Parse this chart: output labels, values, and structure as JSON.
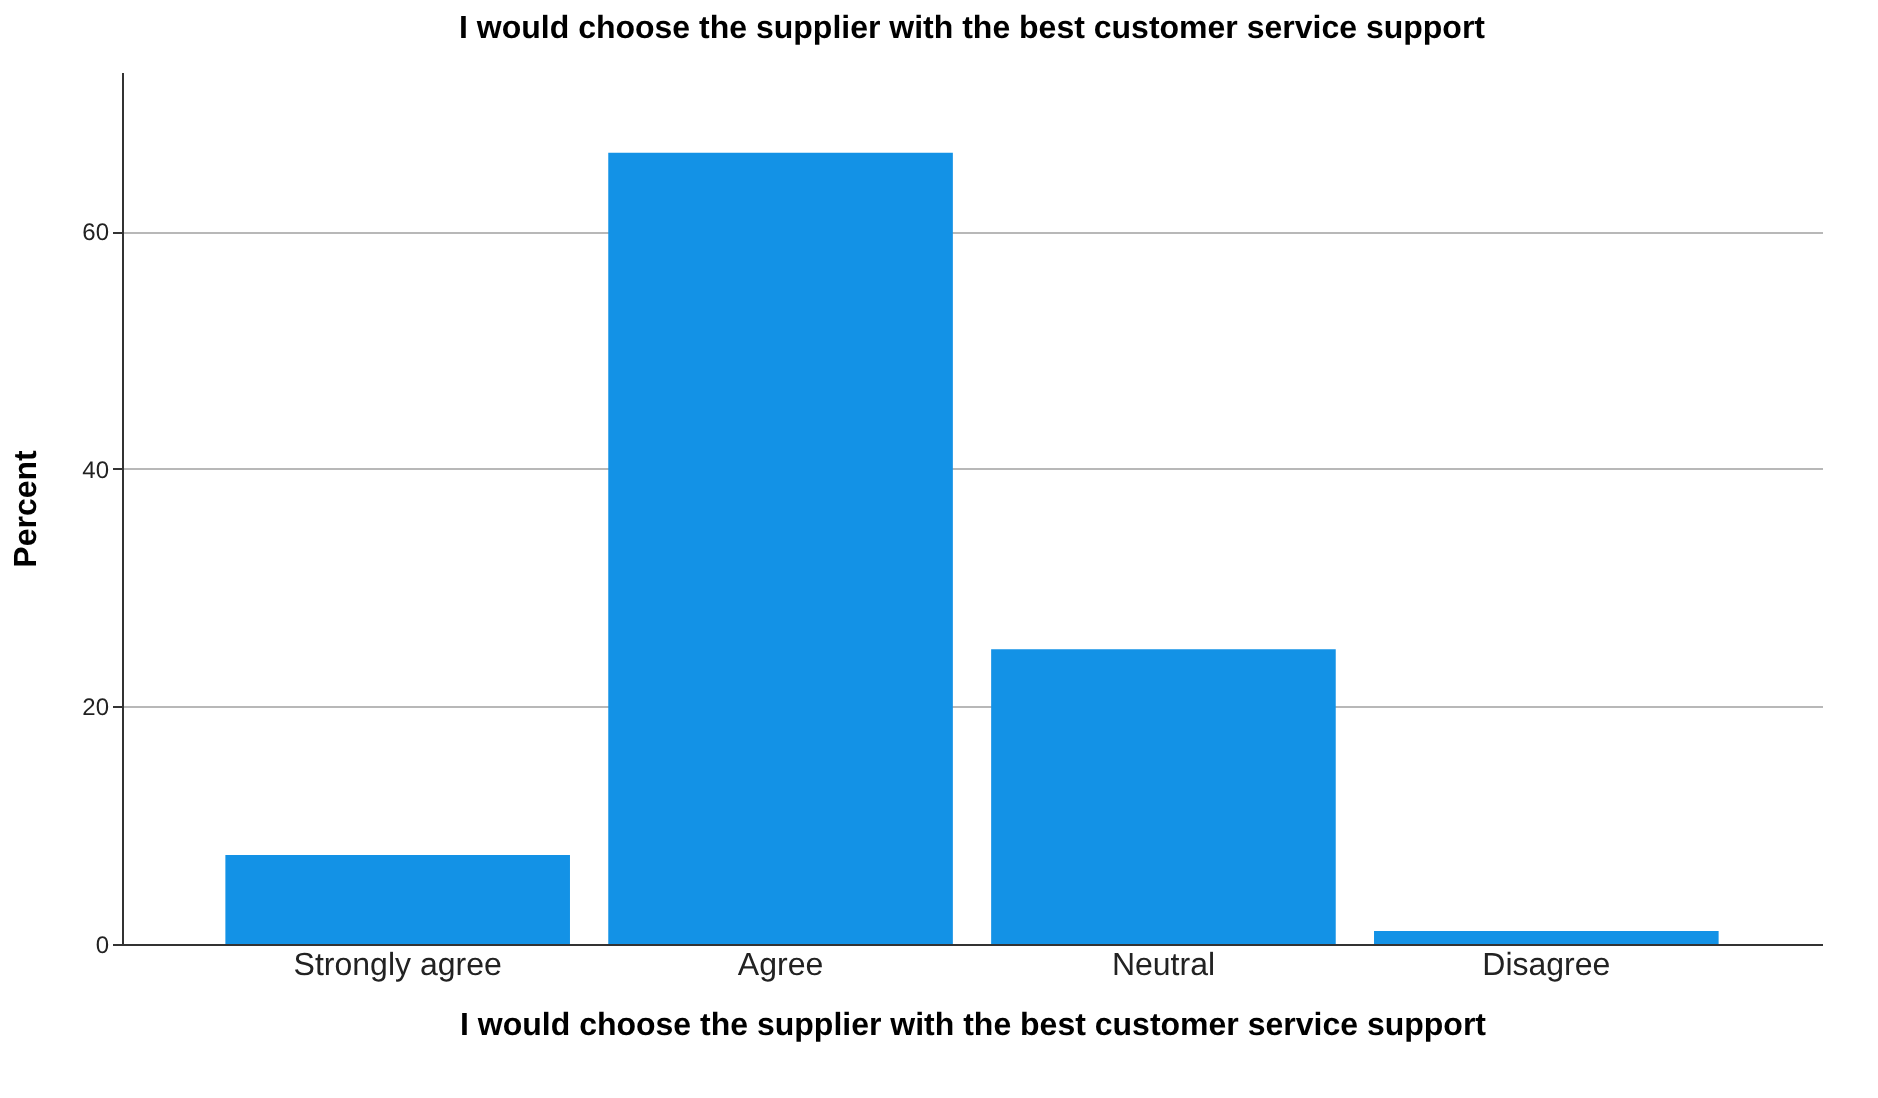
{
  "chart_data": {
    "type": "bar",
    "title": "I would choose the supplier with the best customer service support",
    "xlabel": "I would choose the supplier with the best customer service support",
    "ylabel": "Percent",
    "categories": [
      "Strongly agree",
      "Agree",
      "Neutral",
      "Disagree"
    ],
    "values": [
      7.5,
      66.6,
      24.8,
      1.1
    ],
    "color": "#1392e6",
    "ylim": [
      0,
      73.4
    ],
    "yticks": [
      0,
      20,
      40,
      60
    ],
    "grid": "y"
  }
}
